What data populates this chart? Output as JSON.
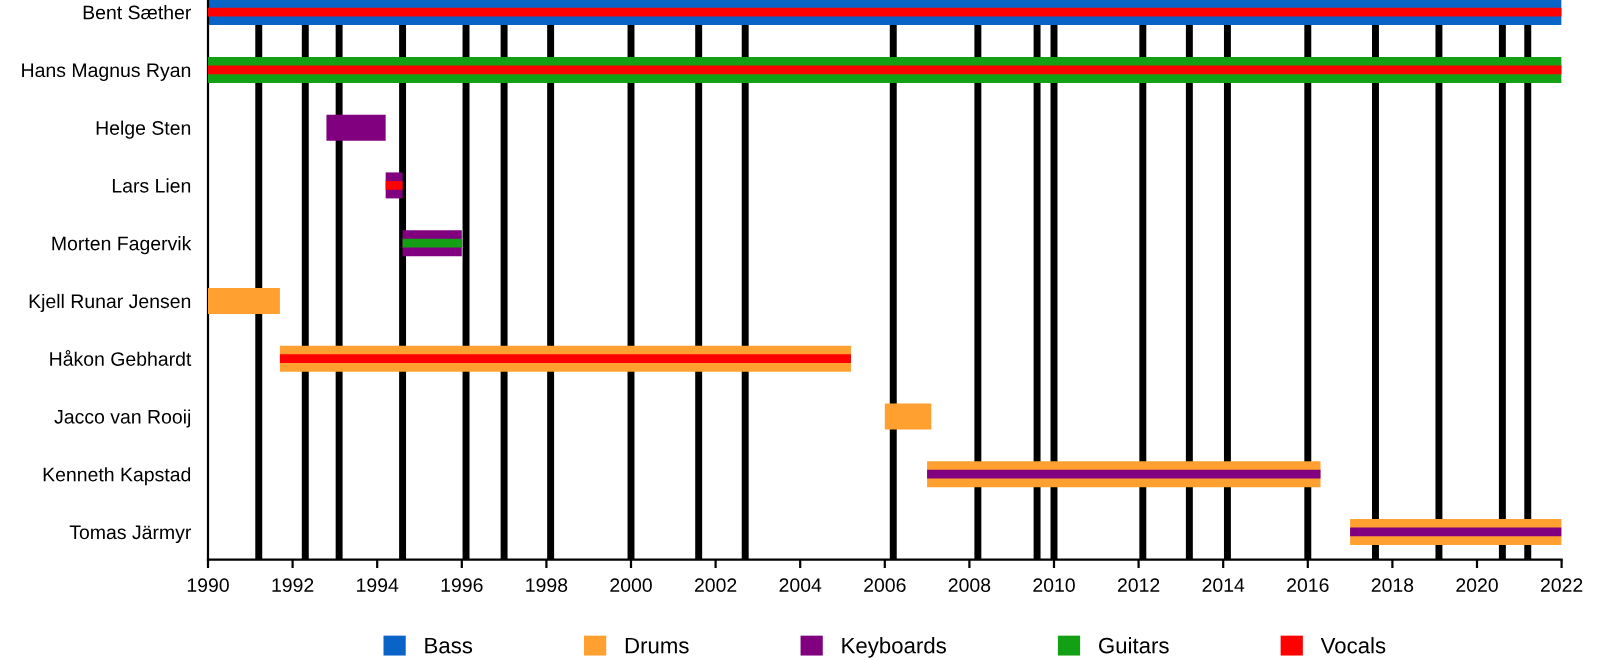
{
  "chart_data": {
    "type": "bar",
    "orientation": "horizontal",
    "categories": [
      "Bent Sæther",
      "Hans Magnus Ryan",
      "Helge Sten",
      "Lars Lien",
      "Morten Fagervik",
      "Kjell Runar Jensen",
      "Håkon Gebhardt",
      "Jacco van Rooij",
      "Kenneth Kapstad",
      "Tomas Järmyr"
    ],
    "series": [
      {
        "name": "Bass",
        "color": "#0a64c8",
        "values": [
          32,
          null,
          null,
          null,
          null,
          null,
          null,
          null,
          null,
          null
        ],
        "base": [
          1990,
          null,
          null,
          null,
          null,
          null,
          null,
          null,
          null,
          null
        ]
      },
      {
        "name": "Drums",
        "color": "#ffa030",
        "values": [
          null,
          null,
          null,
          null,
          null,
          1.7,
          13.5,
          1.1,
          9.3,
          5
        ],
        "base": [
          null,
          null,
          null,
          null,
          null,
          1990,
          1991.7,
          2006.0,
          2007.0,
          2017.0
        ]
      },
      {
        "name": "Keyboards",
        "color": "#800080",
        "values": [
          null,
          null,
          1.4,
          0.4,
          1.4,
          null,
          null,
          null,
          9.3,
          5
        ],
        "base": [
          null,
          null,
          1992.8,
          1994.2,
          1994.6,
          null,
          null,
          null,
          2007.0,
          2017.0
        ]
      },
      {
        "name": "Guitars",
        "color": "#14a014",
        "values": [
          null,
          32,
          null,
          null,
          1.4,
          null,
          null,
          null,
          null,
          null
        ],
        "base": [
          null,
          1990,
          null,
          null,
          1994.6,
          null,
          null,
          null,
          null,
          null
        ]
      },
      {
        "name": "Vocals",
        "color": "#ff0000",
        "values": [
          32,
          32,
          null,
          0.4,
          null,
          null,
          13.5,
          null,
          null,
          null
        ],
        "base": [
          1990,
          1990,
          null,
          1994.2,
          null,
          null,
          1991.7,
          null,
          null,
          null
        ]
      }
    ],
    "xlim": [
      1990,
      2022
    ],
    "xticks": [
      1990,
      1992,
      1994,
      1996,
      1998,
      2000,
      2002,
      2004,
      2006,
      2008,
      2010,
      2012,
      2014,
      2016,
      2018,
      2020,
      2022
    ],
    "ref_lines": [
      {
        "axis": "x",
        "value": 1991.2,
        "color": "#000000"
      },
      {
        "axis": "x",
        "value": 1992.3,
        "color": "#000000"
      },
      {
        "axis": "x",
        "value": 1993.1,
        "color": "#000000"
      },
      {
        "axis": "x",
        "value": 1994.6,
        "color": "#000000"
      },
      {
        "axis": "x",
        "value": 1996.1,
        "color": "#000000"
      },
      {
        "axis": "x",
        "value": 1997.0,
        "color": "#000000"
      },
      {
        "axis": "x",
        "value": 1998.1,
        "color": "#000000"
      },
      {
        "axis": "x",
        "value": 2000.0,
        "color": "#000000"
      },
      {
        "axis": "x",
        "value": 2001.6,
        "color": "#000000"
      },
      {
        "axis": "x",
        "value": 2002.7,
        "color": "#000000"
      },
      {
        "axis": "x",
        "value": 2006.2,
        "color": "#000000"
      },
      {
        "axis": "x",
        "value": 2008.2,
        "color": "#000000"
      },
      {
        "axis": "x",
        "value": 2009.6,
        "color": "#000000"
      },
      {
        "axis": "x",
        "value": 2010.0,
        "color": "#000000"
      },
      {
        "axis": "x",
        "value": 2012.1,
        "color": "#000000"
      },
      {
        "axis": "x",
        "value": 2013.2,
        "color": "#000000"
      },
      {
        "axis": "x",
        "value": 2014.1,
        "color": "#000000"
      },
      {
        "axis": "x",
        "value": 2016.0,
        "color": "#000000"
      },
      {
        "axis": "x",
        "value": 2017.6,
        "color": "#000000"
      },
      {
        "axis": "x",
        "value": 2019.1,
        "color": "#000000"
      },
      {
        "axis": "x",
        "value": 2020.6,
        "color": "#000000"
      },
      {
        "axis": "x",
        "value": 2021.2,
        "color": "#000000"
      }
    ],
    "legend": "bottom",
    "grid": false
  }
}
